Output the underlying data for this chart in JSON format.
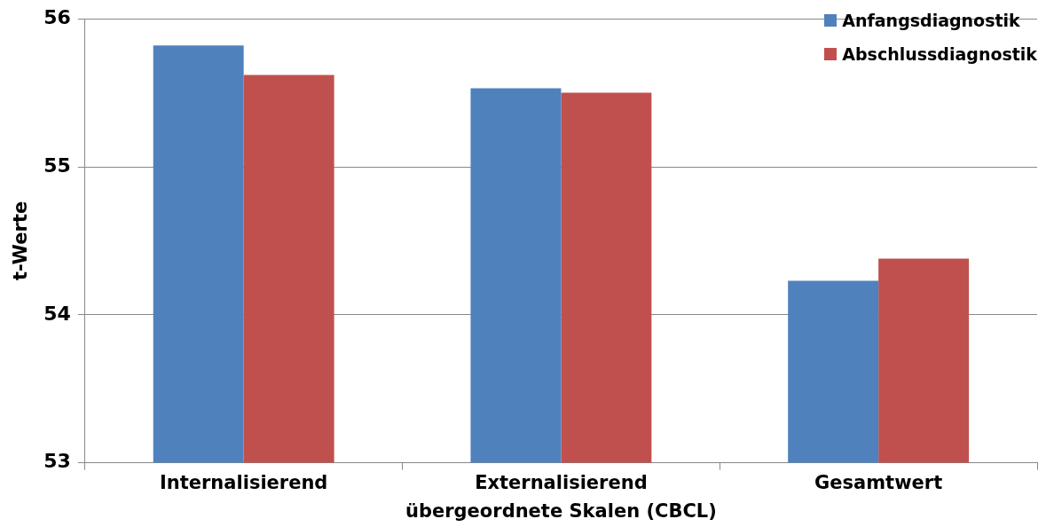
{
  "chart_data": {
    "type": "bar",
    "xlabel": "übergeordnete Skalen (CBCL)",
    "ylabel": "t-Werte",
    "categories": [
      "Internalisierend",
      "Externalisierend",
      "Gesamtwert"
    ],
    "series": [
      {
        "name": "Anfangsdiagnostik",
        "color": "#4f81bd",
        "values": [
          55.82,
          55.53,
          54.23
        ]
      },
      {
        "name": "Abschlussdiagnostik",
        "color": "#c0504d",
        "values": [
          55.62,
          55.5,
          54.38
        ]
      }
    ],
    "ylim": [
      53,
      56
    ],
    "yticks": [
      53,
      54,
      55,
      56
    ],
    "grid": "y",
    "legend": "top right"
  }
}
